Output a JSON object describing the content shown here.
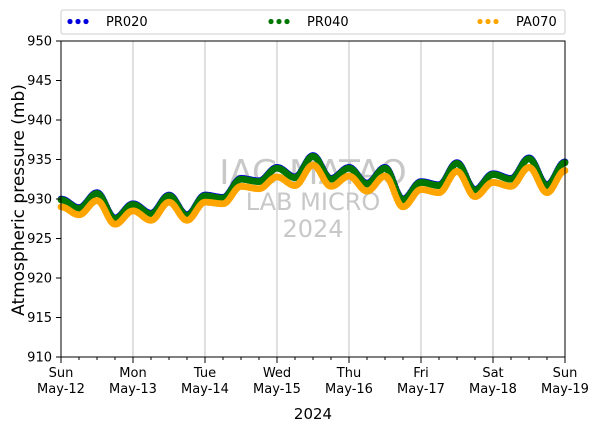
{
  "chart_data": {
    "type": "line",
    "title": "",
    "xlabel": "2024",
    "ylabel": "Atmospheric pressure (mb)",
    "ylim": [
      910,
      950
    ],
    "yticks": [
      910,
      915,
      920,
      925,
      930,
      935,
      940,
      945,
      950
    ],
    "xlim_days": [
      0,
      7
    ],
    "xticks": [
      {
        "day": "Sun",
        "date": "May-12"
      },
      {
        "day": "Mon",
        "date": "May-13"
      },
      {
        "day": "Tue",
        "date": "May-14"
      },
      {
        "day": "Wed",
        "date": "May-15"
      },
      {
        "day": "Thu",
        "date": "May-16"
      },
      {
        "day": "Fri",
        "date": "May-17"
      },
      {
        "day": "Sat",
        "date": "May-18"
      },
      {
        "day": "Sun",
        "date": "May-19"
      }
    ],
    "grid": "vertical",
    "legend_placement": "top",
    "watermark": [
      "IAG MATAO",
      "LAB MICRO",
      "2024"
    ],
    "series": [
      {
        "name": "PR020",
        "color": "#0000dd"
      },
      {
        "name": "PR040",
        "color": "#007700"
      },
      {
        "name": "PA070",
        "color": "#ffa500"
      }
    ],
    "x": [
      "May-12 00:00",
      "May-12 06:00",
      "May-12 12:00",
      "May-12 18:00",
      "May-13 00:00",
      "May-13 06:00",
      "May-13 12:00",
      "May-13 18:00",
      "May-14 00:00",
      "May-14 06:00",
      "May-14 12:00",
      "May-14 18:00",
      "May-15 00:00",
      "May-15 06:00",
      "May-15 12:00",
      "May-15 18:00",
      "May-16 00:00",
      "May-16 06:00",
      "May-16 12:00",
      "May-16 18:00",
      "May-17 00:00",
      "May-17 06:00",
      "May-17 12:00",
      "May-17 18:00",
      "May-18 00:00",
      "May-18 06:00",
      "May-18 12:00",
      "May-18 18:00",
      "May-19 00:00"
    ],
    "values": {
      "PR020": [
        930.0,
        928.9,
        930.8,
        927.6,
        929.4,
        928.2,
        930.5,
        928.0,
        930.5,
        930.2,
        932.6,
        932.3,
        934.0,
        932.8,
        935.5,
        932.6,
        934.0,
        932.0,
        934.0,
        930.0,
        932.2,
        931.8,
        934.6,
        931.2,
        933.2,
        932.6,
        935.2,
        931.8,
        934.7
      ],
      "PR040": [
        929.9,
        928.8,
        930.7,
        927.5,
        929.3,
        928.1,
        930.4,
        927.9,
        930.4,
        930.1,
        932.5,
        932.2,
        933.9,
        932.7,
        935.4,
        932.5,
        933.9,
        931.9,
        933.9,
        929.9,
        932.1,
        931.7,
        934.5,
        931.1,
        933.1,
        932.5,
        935.1,
        931.7,
        934.6
      ],
      "PA070": [
        929.0,
        928.0,
        929.8,
        926.8,
        928.5,
        927.3,
        929.6,
        927.3,
        929.6,
        929.4,
        931.6,
        931.3,
        932.8,
        931.7,
        934.3,
        931.6,
        932.9,
        931.0,
        932.9,
        929.0,
        931.2,
        930.8,
        933.5,
        930.3,
        932.1,
        931.6,
        934.0,
        930.8,
        933.6
      ]
    }
  }
}
